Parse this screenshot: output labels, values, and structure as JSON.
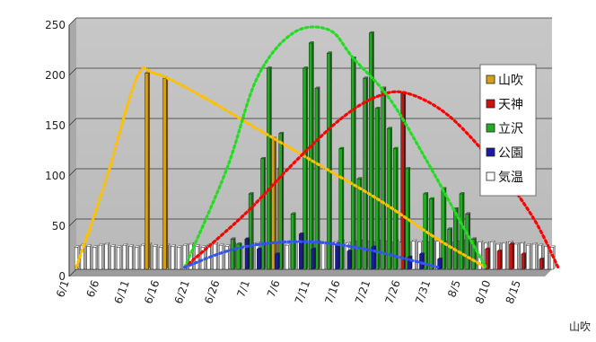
{
  "chart_data": {
    "type": "bar",
    "style": "3d-clustered-bars-with-dotted-trend-curves",
    "title": "",
    "xlabel": "",
    "ylabel": "",
    "ylim": [
      0,
      250
    ],
    "yticks": [
      0,
      50,
      100,
      150,
      200,
      250
    ],
    "xtick_labels": [
      "6/1",
      "6/6",
      "6/11",
      "6/16",
      "6/21",
      "6/26",
      "7/1",
      "7/6",
      "7/11",
      "7/16",
      "7/21",
      "7/26",
      "7/31",
      "8/5",
      "8/10",
      "8/15"
    ],
    "axis_overflow_label": "山吹",
    "grid": true,
    "legend_position": "right",
    "series": [
      {
        "name": "山吹",
        "color": "#d4a017",
        "bars": [
          {
            "day": 12,
            "value": 195
          },
          {
            "day": 15,
            "value": 190
          },
          {
            "day": 33,
            "value": 130
          },
          {
            "day": 34,
            "value": 100
          }
        ],
        "trend": [
          [
            0,
            2
          ],
          [
            5,
            90
          ],
          [
            10,
            190
          ],
          [
            13,
            195
          ],
          [
            20,
            175
          ],
          [
            30,
            140
          ],
          [
            40,
            105
          ],
          [
            50,
            70
          ],
          [
            60,
            30
          ],
          [
            68,
            2
          ]
        ]
      },
      {
        "name": "天神",
        "color": "#cc1111",
        "bars": [
          {
            "day": 54,
            "value": 175
          },
          {
            "day": 68,
            "value": 20
          },
          {
            "day": 70,
            "value": 18
          },
          {
            "day": 72,
            "value": 25
          },
          {
            "day": 74,
            "value": 15
          },
          {
            "day": 77,
            "value": 10
          }
        ],
        "trend": [
          [
            18,
            2
          ],
          [
            28,
            55
          ],
          [
            36,
            105
          ],
          [
            44,
            150
          ],
          [
            50,
            172
          ],
          [
            55,
            175
          ],
          [
            62,
            152
          ],
          [
            70,
            100
          ],
          [
            76,
            50
          ],
          [
            80,
            2
          ]
        ]
      },
      {
        "name": "立沢",
        "color": "#22aa22",
        "bars": [
          {
            "day": 26,
            "value": 30
          },
          {
            "day": 27,
            "value": 25
          },
          {
            "day": 29,
            "value": 75
          },
          {
            "day": 31,
            "value": 110
          },
          {
            "day": 32,
            "value": 200
          },
          {
            "day": 34,
            "value": 135
          },
          {
            "day": 36,
            "value": 55
          },
          {
            "day": 38,
            "value": 200
          },
          {
            "day": 39,
            "value": 225
          },
          {
            "day": 40,
            "value": 180
          },
          {
            "day": 42,
            "value": 215
          },
          {
            "day": 44,
            "value": 120
          },
          {
            "day": 46,
            "value": 210
          },
          {
            "day": 47,
            "value": 90
          },
          {
            "day": 48,
            "value": 190
          },
          {
            "day": 49,
            "value": 235
          },
          {
            "day": 50,
            "value": 160
          },
          {
            "day": 51,
            "value": 180
          },
          {
            "day": 52,
            "value": 140
          },
          {
            "day": 53,
            "value": 120
          },
          {
            "day": 55,
            "value": 100
          },
          {
            "day": 58,
            "value": 75
          },
          {
            "day": 59,
            "value": 70
          },
          {
            "day": 61,
            "value": 80
          },
          {
            "day": 62,
            "value": 40
          },
          {
            "day": 63,
            "value": 60
          },
          {
            "day": 64,
            "value": 75
          },
          {
            "day": 65,
            "value": 55
          },
          {
            "day": 66,
            "value": 30
          }
        ],
        "trend": [
          [
            18,
            2
          ],
          [
            25,
            100
          ],
          [
            30,
            190
          ],
          [
            36,
            235
          ],
          [
            42,
            238
          ],
          [
            46,
            210
          ],
          [
            52,
            170
          ],
          [
            58,
            110
          ],
          [
            64,
            45
          ],
          [
            68,
            2
          ]
        ]
      },
      {
        "name": "公園",
        "color": "#1a1aa0",
        "bars": [
          {
            "day": 28,
            "value": 30
          },
          {
            "day": 30,
            "value": 20
          },
          {
            "day": 33,
            "value": 15
          },
          {
            "day": 37,
            "value": 35
          },
          {
            "day": 39,
            "value": 20
          },
          {
            "day": 43,
            "value": 25
          },
          {
            "day": 45,
            "value": 18
          },
          {
            "day": 49,
            "value": 22
          },
          {
            "day": 55,
            "value": 12
          },
          {
            "day": 57,
            "value": 15
          },
          {
            "day": 60,
            "value": 10
          }
        ],
        "trend": [
          [
            18,
            2
          ],
          [
            25,
            18
          ],
          [
            32,
            26
          ],
          [
            40,
            27
          ],
          [
            48,
            20
          ],
          [
            55,
            10
          ],
          [
            60,
            2
          ]
        ]
      },
      {
        "name": "気温",
        "color": "#ffffff",
        "bars": [
          {
            "day": 0,
            "value": 22
          },
          {
            "day": 1,
            "value": 24
          },
          {
            "day": 2,
            "value": 23
          },
          {
            "day": 3,
            "value": 22
          },
          {
            "day": 4,
            "value": 24
          },
          {
            "day": 5,
            "value": 25
          },
          {
            "day": 6,
            "value": 23
          },
          {
            "day": 7,
            "value": 22
          },
          {
            "day": 8,
            "value": 24
          },
          {
            "day": 9,
            "value": 23
          },
          {
            "day": 10,
            "value": 22
          },
          {
            "day": 11,
            "value": 24
          },
          {
            "day": 12,
            "value": 25
          },
          {
            "day": 13,
            "value": 23
          },
          {
            "day": 14,
            "value": 22
          },
          {
            "day": 15,
            "value": 24
          },
          {
            "day": 16,
            "value": 23
          },
          {
            "day": 17,
            "value": 22
          },
          {
            "day": 18,
            "value": 24
          },
          {
            "day": 19,
            "value": 25
          },
          {
            "day": 20,
            "value": 23
          },
          {
            "day": 21,
            "value": 22
          },
          {
            "day": 22,
            "value": 24
          },
          {
            "day": 23,
            "value": 25
          },
          {
            "day": 24,
            "value": 24
          },
          {
            "day": 25,
            "value": 23
          },
          {
            "day": 26,
            "value": 25
          },
          {
            "day": 27,
            "value": 24
          },
          {
            "day": 28,
            "value": 23
          },
          {
            "day": 29,
            "value": 25
          },
          {
            "day": 30,
            "value": 26
          },
          {
            "day": 31,
            "value": 24
          },
          {
            "day": 32,
            "value": 25
          },
          {
            "day": 33,
            "value": 26
          },
          {
            "day": 34,
            "value": 25
          },
          {
            "day": 35,
            "value": 24
          },
          {
            "day": 36,
            "value": 26
          },
          {
            "day": 37,
            "value": 27
          },
          {
            "day": 38,
            "value": 25
          },
          {
            "day": 39,
            "value": 26
          },
          {
            "day": 40,
            "value": 27
          },
          {
            "day": 41,
            "value": 26
          },
          {
            "day": 42,
            "value": 25
          },
          {
            "day": 43,
            "value": 27
          },
          {
            "day": 44,
            "value": 28
          },
          {
            "day": 45,
            "value": 26
          },
          {
            "day": 46,
            "value": 27
          },
          {
            "day": 47,
            "value": 28
          },
          {
            "day": 48,
            "value": 27
          },
          {
            "day": 49,
            "value": 26
          },
          {
            "day": 50,
            "value": 28
          },
          {
            "day": 51,
            "value": 27
          },
          {
            "day": 52,
            "value": 26
          },
          {
            "day": 53,
            "value": 28
          },
          {
            "day": 54,
            "value": 27
          },
          {
            "day": 55,
            "value": 26
          },
          {
            "day": 56,
            "value": 28
          },
          {
            "day": 57,
            "value": 27
          },
          {
            "day": 58,
            "value": 26
          },
          {
            "day": 59,
            "value": 27
          },
          {
            "day": 60,
            "value": 28
          },
          {
            "day": 61,
            "value": 27
          },
          {
            "day": 62,
            "value": 26
          },
          {
            "day": 63,
            "value": 27
          },
          {
            "day": 64,
            "value": 28
          },
          {
            "day": 65,
            "value": 27
          },
          {
            "day": 66,
            "value": 26
          },
          {
            "day": 67,
            "value": 27
          },
          {
            "day": 68,
            "value": 26
          },
          {
            "day": 69,
            "value": 27
          },
          {
            "day": 70,
            "value": 25
          },
          {
            "day": 71,
            "value": 26
          },
          {
            "day": 72,
            "value": 27
          },
          {
            "day": 73,
            "value": 25
          },
          {
            "day": 74,
            "value": 26
          },
          {
            "day": 75,
            "value": 24
          },
          {
            "day": 76,
            "value": 25
          },
          {
            "day": 77,
            "value": 24
          },
          {
            "day": 78,
            "value": 23
          },
          {
            "day": 79,
            "value": 22
          }
        ],
        "trend": null
      }
    ]
  }
}
